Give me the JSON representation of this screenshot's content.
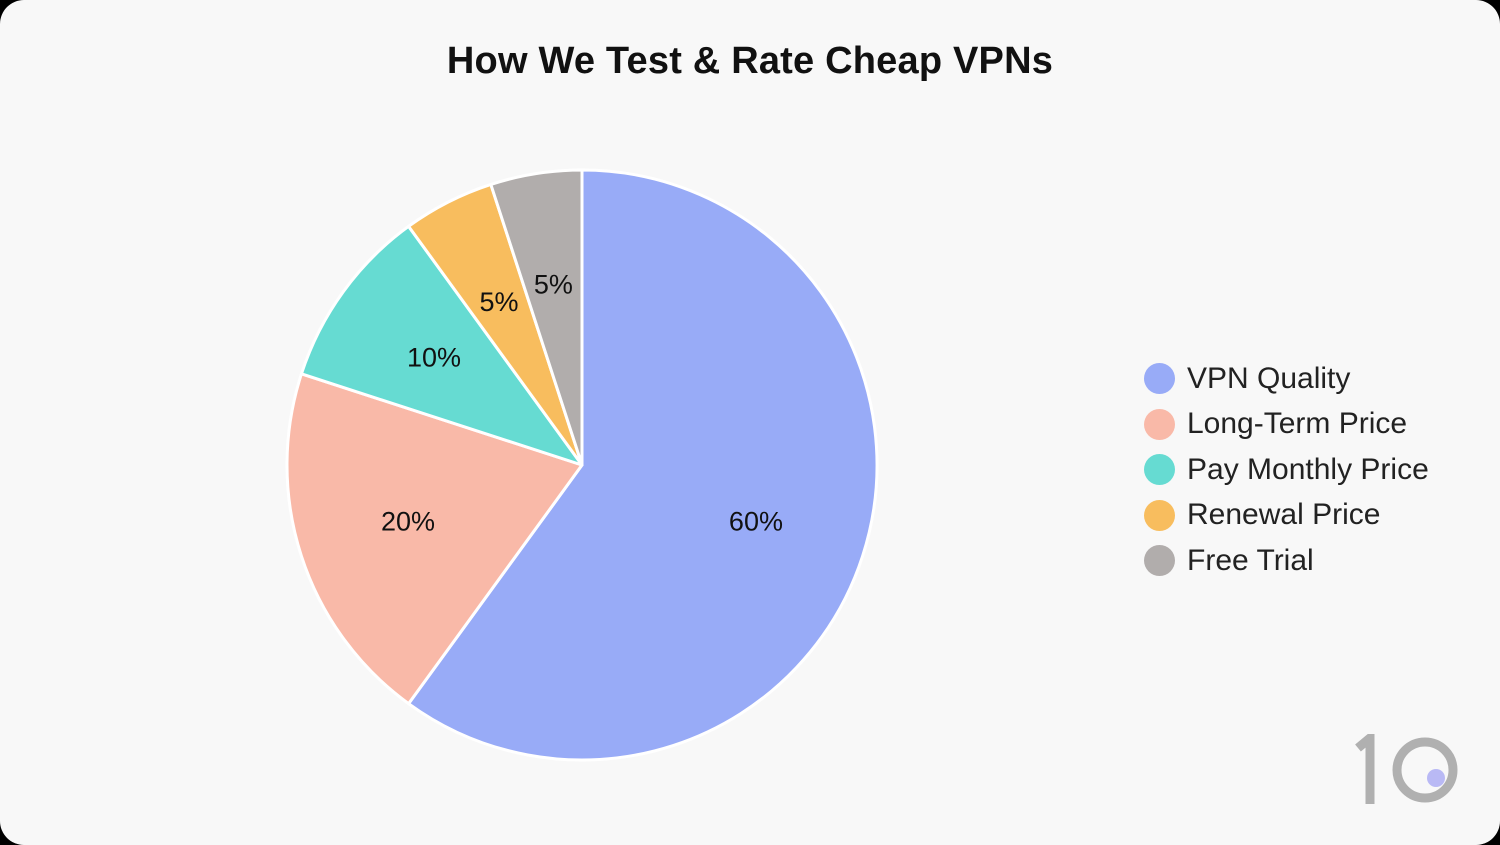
{
  "chart_data": {
    "type": "pie",
    "title": "How We Test & Rate Cheap VPNs",
    "slices": [
      {
        "name": "VPN Quality",
        "value": 60,
        "label": "60%",
        "color": "#98abf7"
      },
      {
        "name": "Long-Term Price",
        "value": 20,
        "label": "20%",
        "color": "#f9b9a8"
      },
      {
        "name": "Pay Monthly Price",
        "value": 10,
        "label": "10%",
        "color": "#66dbd2"
      },
      {
        "name": "Renewal Price",
        "value": 5,
        "label": "5%",
        "color": "#f8bd5e"
      },
      {
        "name": "Free Trial",
        "value": 5,
        "label": "5%",
        "color": "#b1adac"
      }
    ],
    "legend_position": "right",
    "start_angle": "12 o'clock",
    "direction": "clockwise"
  },
  "branding": {
    "logo_text": "10",
    "logo_color": "#b0b0b0",
    "logo_accent": "#b9b9f5"
  }
}
